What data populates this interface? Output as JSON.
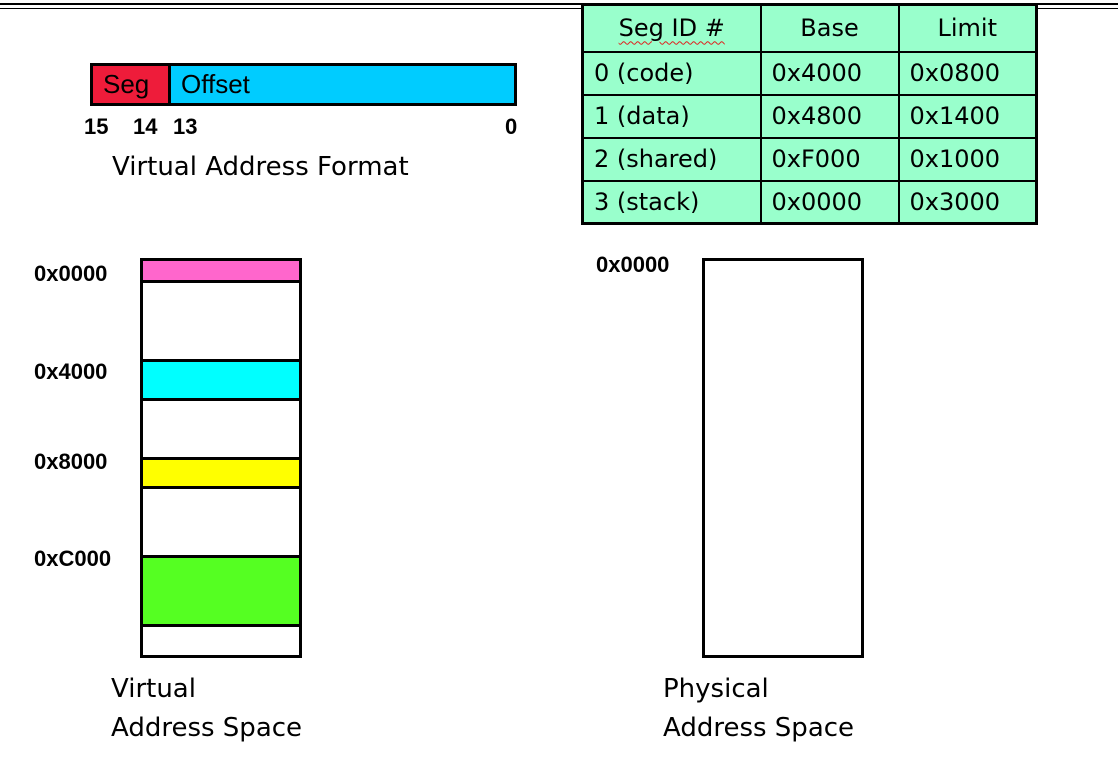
{
  "format": {
    "seg_label": "Seg",
    "offset_label": "Offset",
    "bits": [
      "15",
      "14",
      "13",
      "0"
    ],
    "caption": "Virtual Address Format",
    "seg_color": "#ee1c3a",
    "offset_color": "#00ccff"
  },
  "table": {
    "headers": [
      "Seg ID #",
      "Base",
      "Limit"
    ],
    "rows": [
      [
        "0 (code)",
        "0x4000",
        "0x0800"
      ],
      [
        "1 (data)",
        "0x4800",
        "0x1400"
      ],
      [
        "2 (shared)",
        "0xF000",
        "0x1000"
      ],
      [
        "3 (stack)",
        "0x0000",
        "0x3000"
      ]
    ],
    "bg_color": "#99ffcc"
  },
  "virtual": {
    "ticks": [
      "0x0000",
      "0x4000",
      "0x8000",
      "0xC000"
    ],
    "caption_line1": "Virtual",
    "caption_line2": "Address Space",
    "segment_colors": [
      "#ff66cc",
      "#00ffff",
      "#ffff00",
      "#55ff22"
    ]
  },
  "physical": {
    "tick": "0x0000",
    "caption_line1": "Physical",
    "caption_line2": "Address Space"
  }
}
